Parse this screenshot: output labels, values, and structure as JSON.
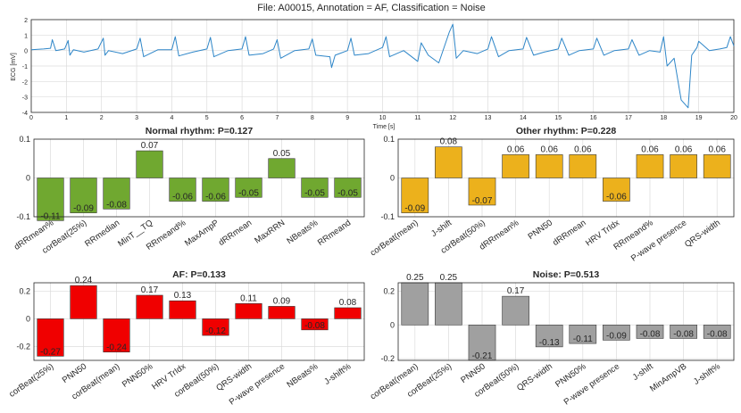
{
  "header": {
    "title": "File: A00015, Annotation = AF, Classification = Noise"
  },
  "ecg": {
    "ylabel": "ECG [mV]",
    "xlabel": "Time [s]",
    "ylim": [
      -4,
      2
    ],
    "xlim": [
      0,
      20
    ],
    "yticks": [
      2,
      1,
      0,
      -1,
      -2,
      -3,
      -4
    ],
    "xticks": [
      0,
      1,
      2,
      3,
      4,
      5,
      6,
      7,
      8,
      9,
      10,
      11,
      12,
      13,
      14,
      15,
      16,
      17,
      18,
      19,
      20
    ],
    "color": "#2e86c8"
  },
  "chart_data": [
    {
      "type": "line",
      "title": "File: A00015, Annotation = AF, Classification = Noise",
      "xlabel": "Time [s]",
      "ylabel": "ECG [mV]",
      "xlim": [
        0,
        20
      ],
      "ylim": [
        -4,
        2
      ],
      "x": [
        0,
        0.35,
        0.55,
        0.6,
        0.7,
        0.95,
        1.05,
        1.1,
        1.2,
        1.5,
        1.9,
        2.05,
        2.1,
        2.2,
        2.6,
        3.0,
        3.1,
        3.2,
        3.6,
        4.0,
        4.1,
        4.2,
        4.6,
        5.0,
        5.1,
        5.2,
        5.6,
        6.0,
        6.1,
        6.2,
        6.6,
        6.9,
        7.0,
        7.1,
        7.5,
        7.9,
        8.0,
        8.1,
        8.5,
        8.55,
        8.65,
        9.0,
        9.1,
        9.2,
        9.6,
        10.0,
        10.1,
        10.2,
        10.6,
        11.0,
        11.1,
        11.3,
        11.6,
        11.9,
        12.0,
        12.1,
        12.3,
        12.7,
        13.0,
        13.1,
        13.3,
        13.6,
        14.0,
        14.1,
        14.3,
        14.6,
        15.0,
        15.1,
        15.3,
        15.6,
        16.0,
        16.1,
        16.3,
        16.6,
        17.0,
        17.1,
        17.3,
        17.6,
        17.9,
        18.0,
        18.1,
        18.3,
        18.5,
        18.7,
        18.75,
        18.8,
        18.95,
        19.0,
        19.3,
        19.6,
        19.8,
        19.9,
        20.0
      ],
      "y": [
        0.05,
        0.1,
        0.15,
        0.7,
        0.0,
        0.1,
        0.65,
        -0.3,
        0.05,
        -0.1,
        0.1,
        0.8,
        -0.3,
        0.0,
        -0.2,
        0.1,
        0.8,
        -0.4,
        0.05,
        0.05,
        0.9,
        -0.35,
        -0.1,
        0.1,
        0.85,
        -0.4,
        0.0,
        0.1,
        0.9,
        -0.3,
        -0.2,
        0.1,
        0.7,
        -0.5,
        0.0,
        0.1,
        0.75,
        -0.3,
        -0.4,
        -1.1,
        -0.3,
        0.0,
        0.8,
        -0.3,
        -0.2,
        0.2,
        0.9,
        -0.4,
        0.0,
        -0.7,
        0.5,
        -0.3,
        -0.8,
        1.2,
        1.7,
        -0.5,
        0.0,
        -0.2,
        0.1,
        0.9,
        -0.4,
        0.0,
        0.1,
        0.85,
        -0.3,
        -0.1,
        0.1,
        0.8,
        -0.3,
        0.0,
        0.1,
        0.8,
        -0.3,
        0.0,
        0.1,
        0.7,
        -0.3,
        0.0,
        -0.1,
        0.9,
        -1.0,
        -0.5,
        -3.2,
        -3.7,
        -2.0,
        -0.3,
        0.2,
        0.6,
        0.0,
        0.1,
        0.2,
        0.9,
        0.3
      ]
    },
    {
      "type": "bar",
      "title": "Normal rhythm: P=0.127",
      "color": "#70a830",
      "ylim": [
        -0.1,
        0.1
      ],
      "yticks": [
        0.1,
        0,
        -0.1
      ],
      "ytick_labels": [
        "0.1",
        "0",
        "-0.1"
      ],
      "categories": [
        "dRRmean%",
        "corBeat(25%)",
        "RRmedian",
        "MinT__TQ",
        "RRmeand%",
        "MaxAmpP",
        "dRRmean",
        "MaxRRN",
        "NBeats%",
        "RRmeand"
      ],
      "values": [
        -0.11,
        -0.09,
        -0.08,
        0.07,
        -0.06,
        -0.06,
        -0.05,
        0.05,
        -0.05,
        -0.05
      ],
      "value_labels": [
        "-0.11",
        "-0.09",
        "-0.08",
        "0.07",
        "-0.06",
        "-0.06",
        "-0.05",
        "0.05",
        "-0.05",
        "-0.05"
      ]
    },
    {
      "type": "bar",
      "title": "Other rhythm: P=0.228",
      "color": "#ecb11c",
      "ylim": [
        -0.1,
        0.1
      ],
      "yticks": [
        0.1,
        0,
        -0.1
      ],
      "ytick_labels": [
        "0.1",
        "0",
        "-0.1"
      ],
      "categories": [
        "corBeat(mean)",
        "J-shift",
        "corBeat(50%)",
        "dRRmean%",
        "PNN50",
        "dRRmean",
        "HRV TrIdx",
        "RRmeand%",
        "P-wave presence",
        "QRS-width"
      ],
      "values": [
        -0.09,
        0.08,
        -0.07,
        0.06,
        0.06,
        0.06,
        -0.06,
        0.06,
        0.06,
        0.06
      ],
      "value_labels": [
        "-0.09",
        "0.08",
        "-0.07",
        "0.06",
        "0.06",
        "0.06",
        "-0.06",
        "0.06",
        "0.06",
        "0.06"
      ]
    },
    {
      "type": "bar",
      "title": "AF: P=0.133",
      "color": "#f00000",
      "ylim": [
        -0.3,
        0.26
      ],
      "yticks": [
        0.2,
        0,
        -0.2
      ],
      "ytick_labels": [
        "0.2",
        "0",
        "-0.2"
      ],
      "categories": [
        "corBeat(25%)",
        "PNN50",
        "corBeat(mean)",
        "PNN50%",
        "HRV TrIdx",
        "corBeat(50%)",
        "QRS-width",
        "P-wave presence",
        "NBeats%",
        "J-shift%"
      ],
      "values": [
        -0.27,
        0.24,
        -0.24,
        0.17,
        0.13,
        -0.12,
        0.11,
        0.09,
        -0.08,
        0.08
      ],
      "value_labels": [
        "-0.27",
        "0.24",
        "-0.24",
        "0.17",
        "0.13",
        "-0.12",
        "0.11",
        "0.09",
        "-0.08",
        "0.08"
      ]
    },
    {
      "type": "bar",
      "title": "Noise: P=0.513",
      "color": "#a0a0a0",
      "ylim": [
        -0.21,
        0.25
      ],
      "yticks": [
        0.2,
        0,
        -0.2
      ],
      "ytick_labels": [
        "0.2",
        "0",
        "-0.2"
      ],
      "categories": [
        "corBeat(mean)",
        "corBeat(25%)",
        "PNN50",
        "corBeat(50%)",
        "QRS-width",
        "PNN50%",
        "P-wave presence",
        "J-shift",
        "MinAmpVB",
        "J-shift%"
      ],
      "values": [
        0.25,
        0.25,
        -0.21,
        0.17,
        -0.13,
        -0.11,
        -0.09,
        -0.08,
        -0.08,
        -0.08
      ],
      "value_labels": [
        "0.25",
        "0.25",
        "-0.21",
        "0.17",
        "-0.13",
        "-0.11",
        "-0.09",
        "-0.08",
        "-0.08",
        "-0.08"
      ]
    }
  ]
}
